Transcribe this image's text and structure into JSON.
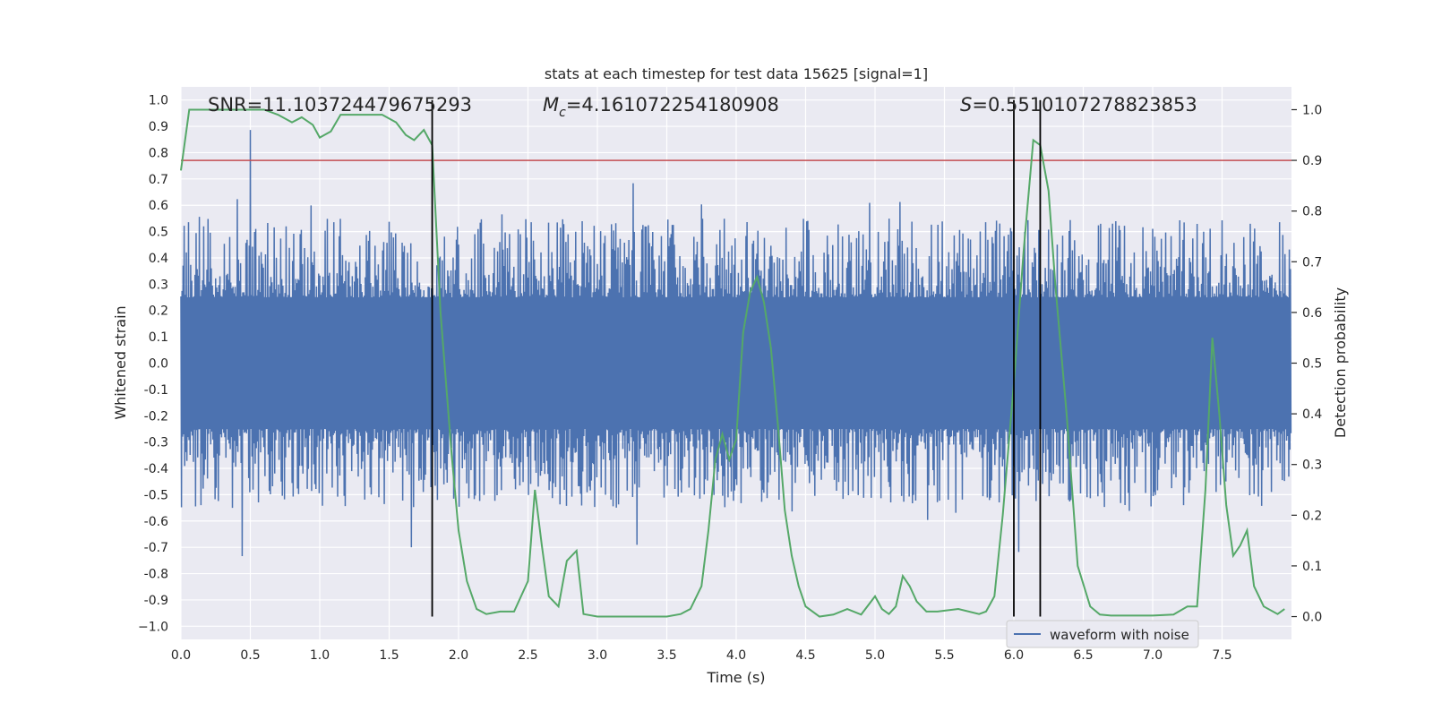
{
  "chart_data": {
    "type": "line",
    "title": "stats at each timestep for test data 15625 [signal=1]",
    "xlabel": "Time (s)",
    "ylabel_left": "Whitened strain",
    "ylabel_right": "Detection probability",
    "xlim": [
      0.0,
      8.0
    ],
    "ylim_left": [
      -1.05,
      1.05
    ],
    "ylim_right": [
      -0.045,
      1.045
    ],
    "x_ticks": [
      0.0,
      0.5,
      1.0,
      1.5,
      2.0,
      2.5,
      3.0,
      3.5,
      4.0,
      4.5,
      5.0,
      5.5,
      6.0,
      6.5,
      7.0,
      7.5
    ],
    "x_tick_labels": [
      "0.0",
      "0.5",
      "1.0",
      "1.5",
      "2.0",
      "2.5",
      "3.0",
      "3.5",
      "4.0",
      "4.5",
      "5.0",
      "5.5",
      "6.0",
      "6.5",
      "7.0",
      "7.5"
    ],
    "y_left_ticks": [
      1.0,
      0.9,
      0.8,
      0.7,
      0.6,
      0.5,
      0.4,
      0.3,
      0.2,
      0.1,
      0.0,
      -0.1,
      -0.2,
      -0.3,
      -0.4,
      -0.5,
      -0.6,
      -0.7,
      -0.8,
      -0.9,
      -1.0
    ],
    "y_left_tick_labels": [
      "1.0",
      "0.9",
      "0.8",
      "0.7",
      "0.6",
      "0.5",
      "0.4",
      "0.3",
      "0.2",
      "0.1",
      "0.0",
      "-0.1",
      "-0.2",
      "-0.3",
      "-0.4",
      "-0.5",
      "-0.6",
      "-0.7",
      "-0.8",
      "-0.9",
      "−1.0"
    ],
    "y_right_ticks": [
      1.0,
      0.9,
      0.8,
      0.7,
      0.6,
      0.5,
      0.4,
      0.3,
      0.2,
      0.1,
      0.0
    ],
    "y_right_tick_labels": [
      "1.0",
      "0.9",
      "0.8",
      "0.7",
      "0.6",
      "0.5",
      "0.4",
      "0.3",
      "0.2",
      "0.1",
      "0.0"
    ],
    "annotations": {
      "snr": "SNR=11.103724479675293",
      "mc_symbol": "M",
      "mc_sub": "c",
      "mc_value": "=4.161072254180908",
      "s_symbol": "S",
      "s_value": "=0.5510107278823853"
    },
    "legend": {
      "label": "waveform with noise",
      "placement": "lower-right"
    },
    "threshold": {
      "value": 0.9,
      "axis": "right",
      "color": "#c44e52"
    },
    "vertical_markers": [
      1.81,
      6.0,
      6.19
    ],
    "strain_series": {
      "name": "waveform with noise",
      "color": "#4c72b0",
      "sample_rate": 256,
      "duration": 8.0,
      "envelope_up": 0.45,
      "envelope_down": -0.45
    },
    "probability_series": {
      "name": "detection probability",
      "color": "#55a868",
      "x": [
        0.0,
        0.06,
        0.1,
        0.2,
        0.3,
        0.4,
        0.5,
        0.6,
        0.7,
        0.8,
        0.87,
        0.95,
        1.0,
        1.08,
        1.15,
        1.25,
        1.35,
        1.45,
        1.55,
        1.62,
        1.68,
        1.75,
        1.81,
        1.87,
        1.95,
        2.0,
        2.06,
        2.13,
        2.2,
        2.3,
        2.4,
        2.5,
        2.55,
        2.6,
        2.65,
        2.72,
        2.78,
        2.85,
        2.9,
        3.0,
        3.2,
        3.4,
        3.5,
        3.6,
        3.67,
        3.75,
        3.8,
        3.85,
        3.9,
        3.95,
        4.0,
        4.05,
        4.1,
        4.15,
        4.2,
        4.25,
        4.3,
        4.35,
        4.4,
        4.45,
        4.5,
        4.6,
        4.7,
        4.8,
        4.9,
        5.0,
        5.05,
        5.1,
        5.15,
        5.2,
        5.25,
        5.3,
        5.37,
        5.45,
        5.6,
        5.75,
        5.8,
        5.86,
        5.92,
        6.0,
        6.07,
        6.14,
        6.19,
        6.25,
        6.3,
        6.38,
        6.46,
        6.55,
        6.62,
        6.7,
        6.8,
        6.9,
        7.0,
        7.15,
        7.25,
        7.32,
        7.38,
        7.43,
        7.48,
        7.53,
        7.58,
        7.63,
        7.68,
        7.73,
        7.8,
        7.9,
        7.95
      ],
      "y": [
        0.88,
        1.0,
        1.0,
        1.0,
        1.0,
        1.0,
        1.0,
        1.0,
        0.99,
        0.975,
        0.985,
        0.97,
        0.945,
        0.957,
        0.99,
        0.99,
        0.99,
        0.99,
        0.975,
        0.95,
        0.94,
        0.96,
        0.93,
        0.6,
        0.32,
        0.17,
        0.07,
        0.015,
        0.005,
        0.01,
        0.01,
        0.07,
        0.25,
        0.14,
        0.04,
        0.02,
        0.11,
        0.13,
        0.005,
        0.0,
        0.0,
        0.0,
        0.0,
        0.005,
        0.015,
        0.06,
        0.17,
        0.31,
        0.36,
        0.31,
        0.35,
        0.56,
        0.64,
        0.67,
        0.62,
        0.53,
        0.38,
        0.21,
        0.12,
        0.06,
        0.02,
        0.0,
        0.004,
        0.015,
        0.004,
        0.04,
        0.015,
        0.005,
        0.02,
        0.08,
        0.06,
        0.03,
        0.01,
        0.01,
        0.015,
        0.005,
        0.01,
        0.04,
        0.2,
        0.46,
        0.72,
        0.94,
        0.93,
        0.84,
        0.65,
        0.4,
        0.1,
        0.02,
        0.004,
        0.002,
        0.002,
        0.002,
        0.002,
        0.004,
        0.02,
        0.02,
        0.25,
        0.55,
        0.4,
        0.22,
        0.12,
        0.14,
        0.17,
        0.06,
        0.02,
        0.005,
        0.015
      ]
    }
  }
}
